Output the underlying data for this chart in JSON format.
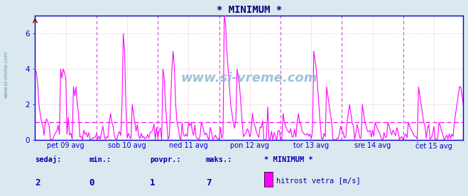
{
  "title": "* MINIMUM *",
  "title_color": "#000080",
  "bg_color": "#dce8f0",
  "plot_bg_color": "#ffffff",
  "line_color": "#ff00ff",
  "avg_line_color": "#ff00ff",
  "avg_line_value": 1.0,
  "ymin": 0,
  "ymax": 7,
  "yticks": [
    0,
    2,
    4,
    6
  ],
  "x_labels": [
    "pet 09 avg",
    "sob 10 avg",
    "ned 11 avg",
    "pon 12 avg",
    "tor 13 avg",
    "sre 14 avg",
    "čet 15 avg"
  ],
  "n_days": 7,
  "points_per_day": 48,
  "watermark": "www.si-vreme.com",
  "footer_labels": [
    "sedaj:",
    "min.:",
    "povpr.:",
    "maks.:"
  ],
  "footer_values": [
    "2",
    "0",
    "1",
    "7"
  ],
  "footer_legend_label": "* MINIMUM *",
  "footer_series_label": "hitrost vetra [m/s]",
  "footer_color": "#0000aa",
  "legend_color": "#ff00ff",
  "vline_color": "#dd44dd",
  "grid_color": "#e8b0b0",
  "axis_color": "#0000cc",
  "axis_spine_color": "#0000cc",
  "top_marker_color": "#880000"
}
